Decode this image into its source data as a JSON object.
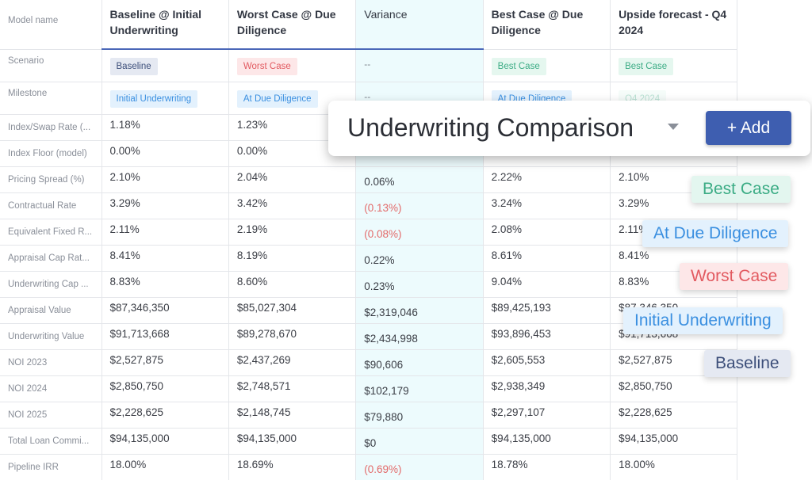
{
  "table": {
    "corner_label": "Model name",
    "columns": [
      "Baseline @ Initial Underwriting",
      "Worst Case @ Due Diligence",
      "Variance",
      "Best Case @ Due Diligence",
      "Upside forecast - Q4 2024"
    ],
    "scenario": {
      "label": "Scenario",
      "values": [
        "Baseline",
        "Worst Case",
        "--",
        "Best Case",
        "Best Case"
      ]
    },
    "milestone": {
      "label": "Milestone",
      "values": [
        "Initial Underwriting",
        "At Due Diligence",
        "--",
        "At Due Diligence",
        "Q4 2024"
      ]
    },
    "rows": [
      {
        "label": "Index/Swap Rate (...",
        "values": [
          "1.18%",
          "1.23%",
          "",
          "",
          ""
        ]
      },
      {
        "label": "Index Floor (model)",
        "values": [
          "0.00%",
          "0.00%",
          "",
          "",
          ""
        ]
      },
      {
        "label": "Pricing Spread (%)",
        "values": [
          "2.10%",
          "2.04%",
          "0.06%",
          "2.22%",
          "2.10%"
        ]
      },
      {
        "label": "Contractual Rate",
        "values": [
          "3.29%",
          "3.42%",
          "(0.13%)",
          "3.24%",
          "3.29%"
        ]
      },
      {
        "label": "Equivalent Fixed R...",
        "values": [
          "2.11%",
          "2.19%",
          "(0.08%)",
          "2.08%",
          "2.11%"
        ]
      },
      {
        "label": "Appraisal Cap Rat...",
        "values": [
          "8.41%",
          "8.19%",
          "0.22%",
          "8.61%",
          "8.41%"
        ]
      },
      {
        "label": "Underwriting Cap ...",
        "values": [
          "8.83%",
          "8.60%",
          "0.23%",
          "9.04%",
          "8.83%"
        ]
      },
      {
        "label": "Appraisal Value",
        "values": [
          "$87,346,350",
          "$85,027,304",
          "$2,319,046",
          "$89,425,193",
          "$87,346,350"
        ]
      },
      {
        "label": "Underwriting Value",
        "values": [
          "$91,713,668",
          "$89,278,670",
          "$2,434,998",
          "$93,896,453",
          "$91,713,668"
        ]
      },
      {
        "label": "NOI 2023",
        "values": [
          "$2,527,875",
          "$2,437,269",
          "$90,606",
          "$2,605,553",
          "$2,527,875"
        ]
      },
      {
        "label": "NOI 2024",
        "values": [
          "$2,850,750",
          "$2,748,571",
          "$102,179",
          "$2,938,349",
          "$2,850,750"
        ]
      },
      {
        "label": "NOI 2025",
        "values": [
          "$2,228,625",
          "$2,148,745",
          "$79,880",
          "$2,297,107",
          "$2,228,625"
        ]
      },
      {
        "label": "Total Loan Commi...",
        "values": [
          "$94,135,000",
          "$94,135,000",
          "$0",
          "$94,135,000",
          "$94,135,000"
        ]
      },
      {
        "label": "Pipeline IRR",
        "values": [
          "18.00%",
          "18.69%",
          "(0.69%)",
          "18.78%",
          "18.00%"
        ]
      }
    ]
  },
  "header": {
    "title": "Underwriting Comparison",
    "add_label": "+ Add"
  },
  "tags": {
    "best": "Best Case",
    "due": "At Due Diligence",
    "worst": "Worst Case",
    "init": "Initial Underwriting",
    "base": "Baseline"
  },
  "colors": {
    "accent": "#3e5eb0",
    "negative": "#e36a6a",
    "variance_bg": "#edfbfd"
  }
}
